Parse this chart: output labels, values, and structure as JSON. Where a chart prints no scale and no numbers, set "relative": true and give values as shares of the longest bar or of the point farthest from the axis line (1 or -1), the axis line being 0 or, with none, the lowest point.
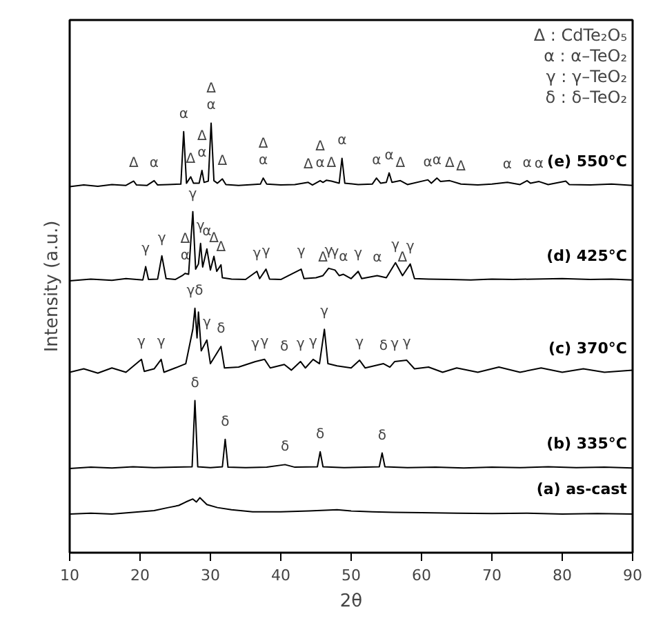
{
  "chart_data": {
    "type": "line",
    "relative": true,
    "xlabel": "2θ",
    "ylabel": "Intensity (a.u.)",
    "xlim": [
      10,
      90
    ],
    "xticks": [
      10,
      20,
      30,
      40,
      50,
      60,
      70,
      80,
      90
    ],
    "tick_labels": "x",
    "line_style": "solid",
    "series": [
      {
        "name": "(e) 550°C",
        "color": "#000000",
        "x": [
          10,
          12,
          14,
          16,
          18,
          19.1,
          19.5,
          21,
          22,
          22.5,
          24,
          25.8,
          26.2,
          26.6,
          27.2,
          27.6,
          28.4,
          28.8,
          29.1,
          29.7,
          30.1,
          30.5,
          31,
          31.7,
          32.2,
          34,
          36,
          37.1,
          37.5,
          38,
          40,
          42,
          43.9,
          44.5,
          45.6,
          46,
          46.5,
          47.2,
          48.3,
          48.7,
          49.1,
          51,
          53,
          53.6,
          54.2,
          55,
          55.4,
          55.8,
          57,
          58,
          60.9,
          61.4,
          62.2,
          62.7,
          64,
          65.6,
          68,
          70,
          72.2,
          74,
          75,
          75.5,
          76.7,
          78,
          80.5,
          81,
          84,
          87,
          90
        ],
        "values": [
          0.852,
          0.856,
          0.853,
          0.857,
          0.855,
          0.865,
          0.856,
          0.855,
          0.866,
          0.856,
          0.857,
          0.858,
          0.98,
          0.86,
          0.875,
          0.86,
          0.86,
          0.89,
          0.862,
          0.865,
          1.0,
          0.866,
          0.86,
          0.87,
          0.857,
          0.855,
          0.857,
          0.858,
          0.872,
          0.858,
          0.856,
          0.857,
          0.862,
          0.856,
          0.866,
          0.862,
          0.867,
          0.865,
          0.86,
          0.918,
          0.86,
          0.857,
          0.858,
          0.872,
          0.86,
          0.862,
          0.884,
          0.862,
          0.866,
          0.857,
          0.868,
          0.86,
          0.872,
          0.864,
          0.866,
          0.858,
          0.856,
          0.858,
          0.862,
          0.857,
          0.866,
          0.86,
          0.864,
          0.857,
          0.865,
          0.857,
          0.856,
          0.858,
          0.855
        ]
      },
      {
        "name": "(d) 425°C",
        "color": "#000000",
        "x": [
          10,
          13,
          16,
          18,
          20.4,
          20.8,
          21.2,
          22.5,
          23.1,
          23.7,
          25,
          26,
          26.4,
          26.9,
          27.5,
          27.9,
          28.3,
          28.6,
          28.9,
          29.5,
          30.0,
          30.5,
          30.9,
          31.5,
          31.7,
          33,
          35,
          36.6,
          37,
          37.9,
          38.4,
          40,
          42.9,
          43.3,
          45,
          46,
          46.8,
          47.7,
          48.3,
          48.9,
          50,
          51,
          51.5,
          53.7,
          55,
          56.3,
          57.3,
          58.4,
          59,
          61,
          64,
          67,
          70,
          73,
          76,
          80,
          84,
          87,
          90
        ],
        "values": [
          0.633,
          0.637,
          0.634,
          0.638,
          0.635,
          0.666,
          0.636,
          0.637,
          0.691,
          0.638,
          0.636,
          0.645,
          0.65,
          0.648,
          0.794,
          0.66,
          0.672,
          0.72,
          0.665,
          0.707,
          0.658,
          0.69,
          0.655,
          0.67,
          0.64,
          0.637,
          0.636,
          0.655,
          0.638,
          0.66,
          0.637,
          0.636,
          0.66,
          0.638,
          0.64,
          0.645,
          0.662,
          0.658,
          0.645,
          0.648,
          0.638,
          0.655,
          0.638,
          0.645,
          0.64,
          0.675,
          0.645,
          0.672,
          0.638,
          0.637,
          0.636,
          0.635,
          0.637,
          0.636,
          0.637,
          0.638,
          0.636,
          0.637,
          0.635
        ]
      },
      {
        "name": "(c) 370°C",
        "color": "#000000",
        "x": [
          10,
          12,
          14,
          16,
          18,
          20.2,
          20.6,
          22,
          23,
          23.4,
          25,
          26.5,
          27.5,
          27.8,
          28.1,
          28.3,
          28.7,
          29.5,
          30,
          31.5,
          32,
          34,
          36.4,
          37.7,
          38.5,
          40.5,
          41.5,
          42.8,
          43.5,
          44.6,
          45.5,
          46.2,
          46.7,
          48,
          50,
          51.2,
          52,
          54.6,
          55.5,
          56.2,
          57.9,
          59,
          61,
          63,
          65,
          68,
          71,
          74,
          77,
          80,
          83,
          86,
          90
        ],
        "values": [
          0.42,
          0.428,
          0.418,
          0.43,
          0.42,
          0.45,
          0.422,
          0.428,
          0.45,
          0.42,
          0.43,
          0.44,
          0.52,
          0.569,
          0.5,
          0.56,
          0.47,
          0.495,
          0.44,
          0.48,
          0.43,
          0.432,
          0.445,
          0.45,
          0.43,
          0.438,
          0.425,
          0.445,
          0.43,
          0.45,
          0.44,
          0.52,
          0.44,
          0.435,
          0.43,
          0.448,
          0.43,
          0.44,
          0.432,
          0.445,
          0.448,
          0.428,
          0.432,
          0.42,
          0.43,
          0.42,
          0.432,
          0.42,
          0.43,
          0.42,
          0.428,
          0.42,
          0.425
        ]
      },
      {
        "name": "(b) 335°C",
        "color": "#000000",
        "x": [
          10,
          13,
          16,
          19,
          22,
          25,
          27.4,
          27.8,
          28.2,
          30,
          31.7,
          32.1,
          32.5,
          35,
          38,
          40.6,
          42,
          45.2,
          45.6,
          46,
          49,
          52,
          54,
          54.4,
          54.8,
          58,
          62,
          66,
          70,
          74,
          78,
          82,
          86,
          90
        ],
        "values": [
          0.196,
          0.199,
          0.197,
          0.2,
          0.198,
          0.199,
          0.2,
          0.354,
          0.2,
          0.198,
          0.2,
          0.264,
          0.199,
          0.198,
          0.199,
          0.205,
          0.199,
          0.2,
          0.235,
          0.2,
          0.198,
          0.199,
          0.2,
          0.232,
          0.2,
          0.198,
          0.199,
          0.197,
          0.199,
          0.198,
          0.2,
          0.198,
          0.199,
          0.197
        ]
      },
      {
        "name": "(a) as-cast",
        "color": "#000000",
        "x": [
          10,
          13,
          16,
          19,
          22,
          24,
          25.5,
          26.5,
          27.5,
          28,
          28.5,
          29.5,
          31,
          33,
          36,
          40,
          44,
          48,
          50,
          53,
          56,
          60,
          65,
          70,
          75,
          80,
          85,
          90
        ],
        "values": [
          0.09,
          0.092,
          0.09,
          0.094,
          0.098,
          0.105,
          0.11,
          0.118,
          0.125,
          0.118,
          0.128,
          0.112,
          0.105,
          0.1,
          0.095,
          0.095,
          0.097,
          0.1,
          0.097,
          0.095,
          0.094,
          0.093,
          0.092,
          0.091,
          0.092,
          0.09,
          0.091,
          0.09
        ]
      }
    ],
    "annotations": [
      "Δ : CdTe₂O₅",
      "α : α–TeO₂",
      "γ : γ–TeO₂",
      "δ : δ–TeO₂",
      {
        "text": "Δ",
        "x": 19.1,
        "y": 0.865
      },
      {
        "text": "α",
        "x": 22,
        "y": 0.866
      },
      {
        "text": "α",
        "x": 26.2,
        "y": 0.98
      },
      {
        "text": "Δ",
        "x": 27.2,
        "y": 0.875
      },
      {
        "text": "α",
        "x": 28.8,
        "y": 0.89
      },
      {
        "text": "Δ",
        "x": 28.8,
        "y": 0.89
      },
      {
        "text": "α",
        "x": 30.1,
        "y": 1.0
      },
      {
        "text": "Δ",
        "x": 30.1,
        "y": 1.0
      },
      {
        "text": "Δ",
        "x": 31.7,
        "y": 0.87
      },
      {
        "text": "α",
        "x": 37.5,
        "y": 0.872
      },
      {
        "text": "Δ",
        "x": 37.5,
        "y": 0.872
      },
      {
        "text": "Δ",
        "x": 43.9,
        "y": 0.862
      },
      {
        "text": "α",
        "x": 45.6,
        "y": 0.866
      },
      {
        "text": "Δ",
        "x": 45.6,
        "y": 0.866
      },
      {
        "text": "Δ",
        "x": 47.2,
        "y": 0.865
      },
      {
        "text": "α",
        "x": 48.7,
        "y": 0.918
      },
      {
        "text": "α",
        "x": 53.6,
        "y": 0.872
      },
      {
        "text": "α",
        "x": 55.4,
        "y": 0.884
      },
      {
        "text": "Δ",
        "x": 57,
        "y": 0.866
      },
      {
        "text": "α",
        "x": 60.9,
        "y": 0.868
      },
      {
        "text": "α",
        "x": 62.2,
        "y": 0.872
      },
      {
        "text": "Δ",
        "x": 64,
        "y": 0.866
      },
      {
        "text": "Δ",
        "x": 65.6,
        "y": 0.858
      },
      {
        "text": "α",
        "x": 72.2,
        "y": 0.862
      },
      {
        "text": "α",
        "x": 75,
        "y": 0.866
      },
      {
        "text": "α",
        "x": 76.7,
        "y": 0.864
      },
      {
        "text": "γ",
        "x": 27.5,
        "y": 0.794
      },
      {
        "text": "α",
        "x": 29.5,
        "y": 0.707
      },
      {
        "text": "α",
        "x": 26.4,
        "y": 0.65
      },
      {
        "text": "Δ",
        "x": 26.4,
        "y": 0.65
      },
      {
        "text": "γ",
        "x": 28.6,
        "y": 0.72
      },
      {
        "text": "Δ",
        "x": 30.5,
        "y": 0.69
      },
      {
        "text": "Δ",
        "x": 31.5,
        "y": 0.67
      },
      {
        "text": "γ",
        "x": 20.8,
        "y": 0.666
      },
      {
        "text": "γ",
        "x": 23.1,
        "y": 0.691
      },
      {
        "text": "γ",
        "x": 36.6,
        "y": 0.655
      },
      {
        "text": "γ",
        "x": 37.9,
        "y": 0.66
      },
      {
        "text": "γ",
        "x": 42.9,
        "y": 0.66
      },
      {
        "text": "Δ",
        "x": 46,
        "y": 0.645
      },
      {
        "text": "γ",
        "x": 46.8,
        "y": 0.662
      },
      {
        "text": "γ",
        "x": 47.7,
        "y": 0.658
      },
      {
        "text": "α",
        "x": 48.9,
        "y": 0.648
      },
      {
        "text": "γ",
        "x": 51,
        "y": 0.655
      },
      {
        "text": "α",
        "x": 53.7,
        "y": 0.645
      },
      {
        "text": "γ",
        "x": 56.3,
        "y": 0.675
      },
      {
        "text": "Δ",
        "x": 57.3,
        "y": 0.645
      },
      {
        "text": "γ",
        "x": 58.4,
        "y": 0.672
      },
      {
        "text": "γδ",
        "x": 27.8,
        "y": 0.569
      },
      {
        "text": "γ",
        "x": 29.5,
        "y": 0.495
      },
      {
        "text": "δ",
        "x": 31.5,
        "y": 0.48
      },
      {
        "text": "γ",
        "x": 20.2,
        "y": 0.45
      },
      {
        "text": "γ",
        "x": 23,
        "y": 0.45
      },
      {
        "text": "γ",
        "x": 36.4,
        "y": 0.445
      },
      {
        "text": "γ",
        "x": 37.7,
        "y": 0.45
      },
      {
        "text": "δ",
        "x": 40.5,
        "y": 0.438
      },
      {
        "text": "γ",
        "x": 42.8,
        "y": 0.445
      },
      {
        "text": "γ",
        "x": 44.6,
        "y": 0.45
      },
      {
        "text": "γ",
        "x": 46.2,
        "y": 0.52
      },
      {
        "text": "γ",
        "x": 51.2,
        "y": 0.448
      },
      {
        "text": "δ",
        "x": 54.6,
        "y": 0.44
      },
      {
        "text": "γ",
        "x": 56.2,
        "y": 0.445
      },
      {
        "text": "γ",
        "x": 57.9,
        "y": 0.448
      },
      {
        "text": "δ",
        "x": 27.8,
        "y": 0.354
      },
      {
        "text": "δ",
        "x": 32.1,
        "y": 0.264
      },
      {
        "text": "δ",
        "x": 40.6,
        "y": 0.205
      },
      {
        "text": "δ",
        "x": 45.6,
        "y": 0.235
      },
      {
        "text": "δ",
        "x": 54.4,
        "y": 0.232
      }
    ]
  }
}
